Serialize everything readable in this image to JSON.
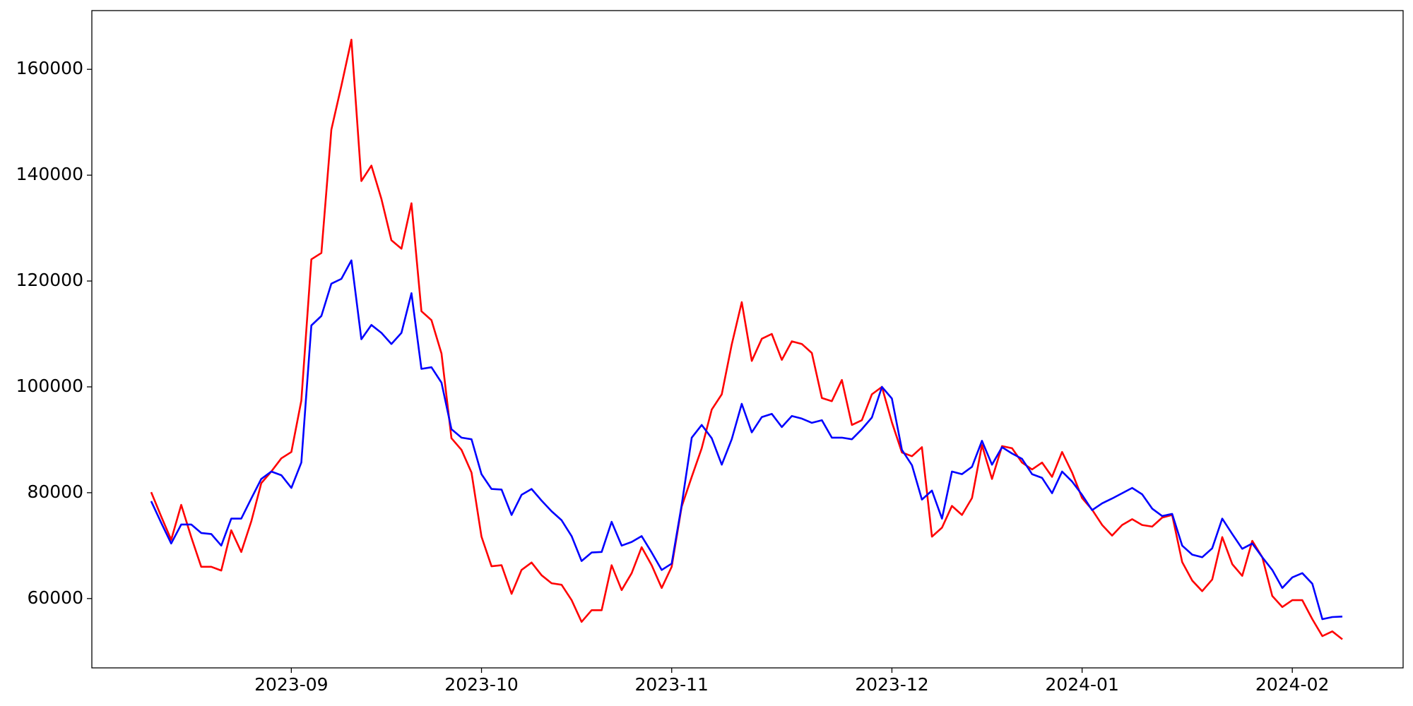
{
  "chart_data": {
    "type": "line",
    "categories": [
      null,
      null,
      null,
      null,
      null,
      null,
      null,
      null,
      null,
      null,
      null,
      null,
      null,
      null,
      "2023-09",
      null,
      null,
      null,
      null,
      null,
      null,
      null,
      null,
      null,
      null,
      null,
      null,
      null,
      null,
      null,
      null,
      null,
      null,
      "2023-10",
      null,
      null,
      null,
      null,
      null,
      null,
      null,
      null,
      null,
      null,
      null,
      null,
      null,
      null,
      null,
      null,
      null,
      null,
      "2023-11",
      null,
      null,
      null,
      null,
      null,
      null,
      null,
      null,
      null,
      null,
      null,
      null,
      null,
      null,
      null,
      null,
      null,
      null,
      null,
      null,
      null,
      "2023-12",
      null,
      null,
      null,
      null,
      null,
      null,
      null,
      null,
      null,
      null,
      null,
      null,
      null,
      null,
      null,
      null,
      null,
      null,
      "2024-01",
      null,
      null,
      null,
      null,
      null,
      null,
      null,
      null,
      null,
      null,
      null,
      null,
      null,
      null,
      null,
      null,
      null,
      null,
      null,
      null,
      "2024-02",
      null,
      null,
      null,
      null,
      null
    ],
    "series": [
      {
        "color": "#ff0000",
        "values": [
          80100,
          75500,
          71100,
          77700,
          71600,
          66000,
          66000,
          65300,
          72900,
          68800,
          74600,
          81800,
          84000,
          86500,
          87700,
          97400,
          124100,
          125300,
          148600,
          156900,
          165600,
          138900,
          141800,
          135500,
          127700,
          126100,
          134700,
          114300,
          112600,
          106300,
          90300,
          88100,
          83800,
          71700,
          66100,
          66300,
          60900,
          65400,
          66800,
          64400,
          62900,
          62600,
          59700,
          55600,
          57800,
          57800,
          66300,
          61600,
          64800,
          69700,
          66300,
          62000,
          66000,
          77400,
          83000,
          88400,
          95700,
          98600,
          108000,
          116000,
          104900,
          109100,
          110000,
          105100,
          108600,
          108100,
          106400,
          97900,
          97300,
          101300,
          92800,
          93700,
          98600,
          100000,
          93300,
          87600,
          86900,
          88600,
          71700,
          73400,
          77500,
          75800,
          79000,
          89000,
          82600,
          88800,
          88400,
          85700,
          84400,
          85700,
          83000,
          87700,
          83800,
          79000,
          76800,
          73900,
          71900,
          73900,
          75000,
          73900,
          73600,
          75300,
          75800,
          66900,
          63400,
          61400,
          63600,
          71600,
          66500,
          64300,
          70900,
          67800,
          60500,
          58400,
          59700,
          59700,
          56100,
          52900,
          53800,
          52300
        ]
      },
      {
        "color": "#0000ff",
        "values": [
          78400,
          74300,
          70400,
          74000,
          74000,
          72400,
          72200,
          70000,
          75100,
          75100,
          78900,
          82600,
          84000,
          83300,
          80900,
          85700,
          111600,
          113400,
          119500,
          120400,
          123900,
          109000,
          111700,
          110200,
          108100,
          110200,
          117700,
          103400,
          103700,
          100800,
          92000,
          90400,
          90100,
          83500,
          80700,
          80600,
          75800,
          79600,
          80700,
          78500,
          76500,
          74800,
          71800,
          67100,
          68700,
          68800,
          74500,
          70000,
          70700,
          71800,
          68700,
          65400,
          66600,
          77700,
          90400,
          92800,
          90300,
          85300,
          90100,
          96800,
          91400,
          94300,
          94900,
          92400,
          94500,
          94000,
          93200,
          93700,
          90400,
          90400,
          90100,
          92000,
          94200,
          100000,
          97800,
          88100,
          85200,
          78700,
          80400,
          75100,
          84000,
          83500,
          84900,
          89800,
          85300,
          88600,
          87400,
          86400,
          83500,
          82800,
          79900,
          84000,
          82100,
          79600,
          76700,
          78000,
          78900,
          79900,
          80900,
          79700,
          77000,
          75600,
          76000,
          70000,
          68300,
          67800,
          69500,
          75100,
          72200,
          69400,
          70400,
          67800,
          65400,
          62000,
          64000,
          64800,
          62800,
          56100,
          56500,
          56600
        ]
      }
    ],
    "ylim": [
      46900,
      171100
    ],
    "yticks": [
      60000,
      80000,
      100000,
      120000,
      140000,
      160000
    ],
    "grid": false
  }
}
